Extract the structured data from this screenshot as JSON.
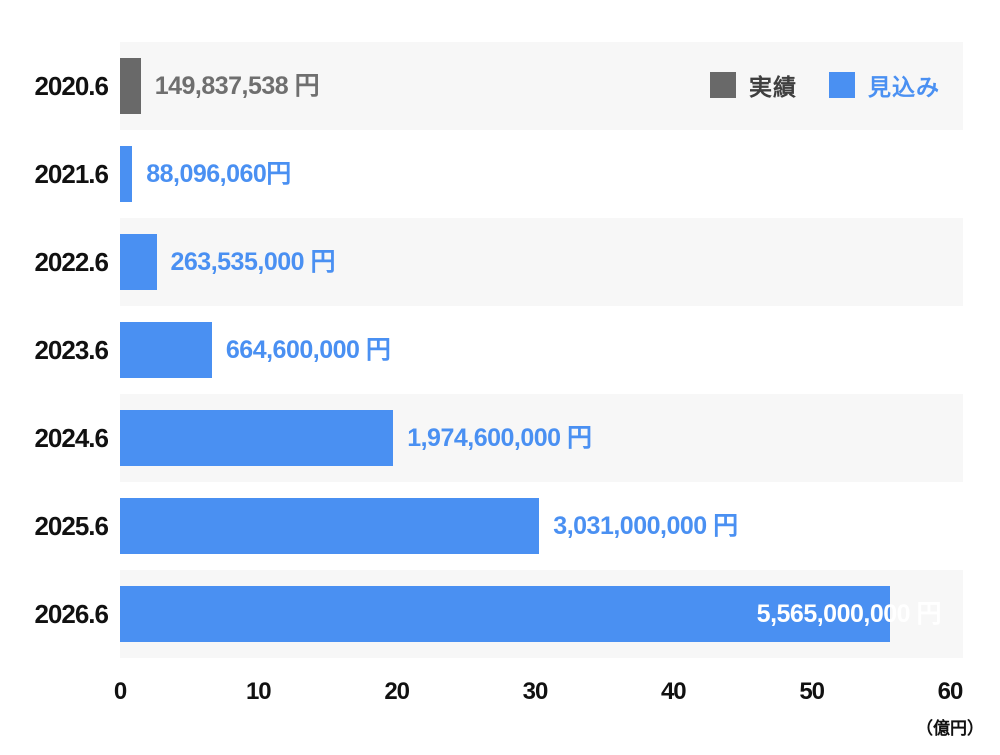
{
  "chart_data": {
    "type": "bar",
    "orientation": "horizontal",
    "title": "",
    "x_axis": {
      "ticks": [
        0,
        10,
        20,
        30,
        40,
        50,
        60
      ],
      "min": 0,
      "max": 60,
      "unit_label": "（億円）",
      "axis_unit_in_yen": 100000000
    },
    "categories": [
      "2020.6",
      "2021.6",
      "2022.6",
      "2023.6",
      "2024.6",
      "2025.6",
      "2026.6"
    ],
    "rows": [
      {
        "category": "2020.6",
        "series": "実績",
        "value_yen": 149837538,
        "value_oku": 1.498,
        "label": "149,837,538 円"
      },
      {
        "category": "2021.6",
        "series": "見込み",
        "value_yen": 88096060,
        "value_oku": 0.881,
        "label": "88,096,060円"
      },
      {
        "category": "2022.6",
        "series": "見込み",
        "value_yen": 263535000,
        "value_oku": 2.635,
        "label": "263,535,000 円"
      },
      {
        "category": "2023.6",
        "series": "見込み",
        "value_yen": 664600000,
        "value_oku": 6.646,
        "label": "664,600,000 円"
      },
      {
        "category": "2024.6",
        "series": "見込み",
        "value_yen": 1974600000,
        "value_oku": 19.746,
        "label": "1,974,600,000 円"
      },
      {
        "category": "2025.6",
        "series": "見込み",
        "value_yen": 3031000000,
        "value_oku": 30.31,
        "label": "3,031,000,000 円"
      },
      {
        "category": "2026.6",
        "series": "見込み",
        "value_yen": 5565000000,
        "value_oku": 55.65,
        "label": "5,565,000,000 円",
        "label_inside": true
      }
    ],
    "legend": [
      {
        "label": "実績",
        "swatch_color": "#696969",
        "text_color": "#3f3f3f"
      },
      {
        "label": "見込み",
        "swatch_color": "#4a90f2",
        "text_color": "#4a90f2"
      }
    ],
    "colors": {
      "actual_bar": "#696969",
      "forecast_bar": "#4a90f2",
      "actual_value_label": "#6f6f6f",
      "forecast_value_label": "#4a90f2",
      "inside_value_label": "#ffffff",
      "row_stripe": "#f7f7f7",
      "axis_text": "#111111"
    },
    "legend_position": "top-right",
    "grid": false
  }
}
